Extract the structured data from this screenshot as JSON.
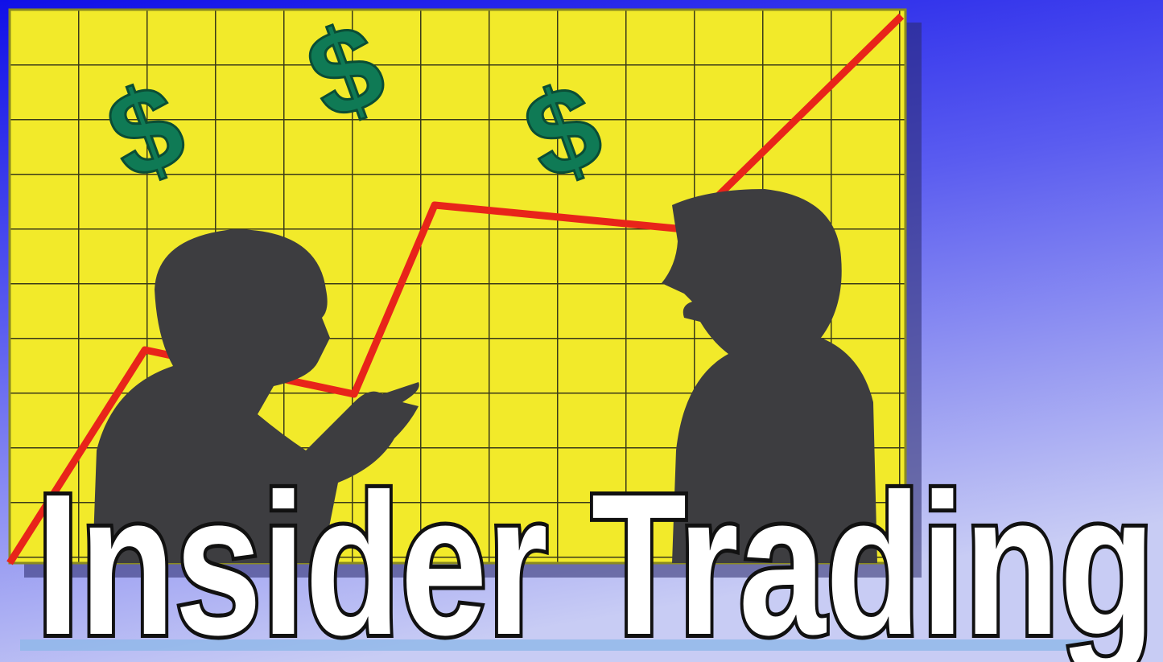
{
  "title": "Insider Trading",
  "symbols": [
    "$",
    "$",
    "$"
  ]
}
